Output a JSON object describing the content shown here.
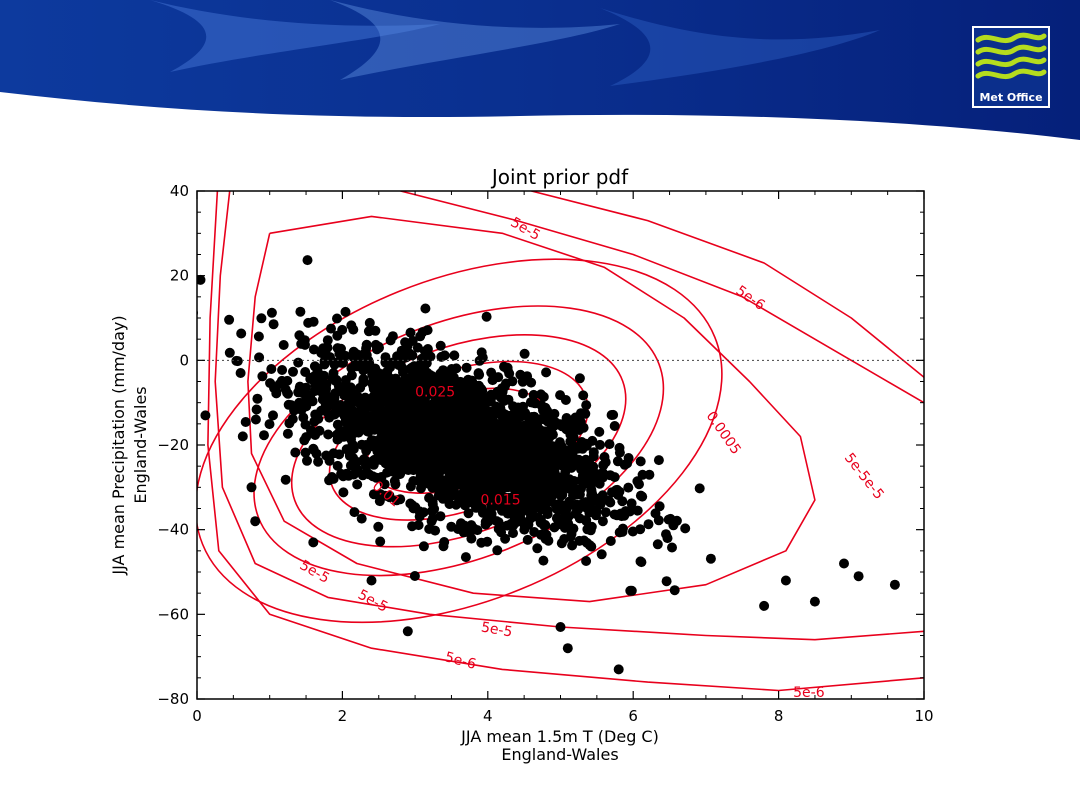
{
  "header": {
    "logo_text": "Met Office"
  },
  "colors": {
    "banner_dark": "#0b2f8c",
    "banner_light": "#e9f2fb",
    "contour": "#e8001c",
    "points": "#000000",
    "logo_green": "#b5dc1e"
  },
  "chart_data": {
    "type": "scatter",
    "title": "Joint prior pdf",
    "xlabel": "JJA mean 1.5m T (Deg C)",
    "xlabel2": "England-Wales",
    "ylabel": "JJA mean Precipitation (mm/day)",
    "ylabel2": "England-Wales",
    "xlim": [
      0,
      10
    ],
    "ylim": [
      -80,
      40
    ],
    "xticks": [
      0,
      2,
      4,
      6,
      8,
      10
    ],
    "yticks": [
      40,
      20,
      0,
      -20,
      -40,
      -60,
      -80
    ],
    "reference_line": {
      "y": 0,
      "style": "dotted"
    },
    "scatter": {
      "center": [
        3.6,
        -19
      ],
      "count": 2500,
      "outliers": [
        [
          0.6,
          -3
        ],
        [
          0.75,
          -30
        ],
        [
          0.8,
          -38
        ],
        [
          1.6,
          -43
        ],
        [
          2.4,
          -52
        ],
        [
          2.9,
          -64
        ],
        [
          5.0,
          -63
        ],
        [
          5.8,
          -73
        ],
        [
          5.1,
          -68
        ],
        [
          7.8,
          -58
        ],
        [
          8.1,
          -52
        ],
        [
          8.5,
          -57
        ],
        [
          9.1,
          -51
        ],
        [
          9.6,
          -53
        ],
        [
          8.9,
          -48
        ]
      ]
    },
    "contours": [
      {
        "level": "0.025",
        "labeled": true
      },
      {
        "level": "0.015",
        "labeled": true
      },
      {
        "level": "0.01",
        "labeled": true
      },
      {
        "level": "0.0005",
        "labeled": true
      },
      {
        "level": "5e-5",
        "labeled": true
      },
      {
        "level": "5e-6",
        "labeled": true
      }
    ],
    "contour_labels": [
      {
        "text": "0.025",
        "x": 3.0,
        "y": -8.5,
        "angle": 0
      },
      {
        "text": "0.015",
        "x": 3.9,
        "y": -34,
        "angle": 0
      },
      {
        "text": "0.01",
        "x": 2.4,
        "y": -30,
        "angle": 40
      },
      {
        "text": "0.0005",
        "x": 7.0,
        "y": -13,
        "angle": 55
      },
      {
        "text": "5e-5",
        "x": 4.3,
        "y": 32,
        "angle": 30
      },
      {
        "text": "5e-6",
        "x": 7.4,
        "y": 16,
        "angle": 35
      },
      {
        "text": "5e-5e-5",
        "x": 8.9,
        "y": -23,
        "angle": 52
      },
      {
        "text": "5e-5",
        "x": 1.4,
        "y": -49,
        "angle": 30
      },
      {
        "text": "5e-5",
        "x": 2.2,
        "y": -56,
        "angle": 28
      },
      {
        "text": "5e-5",
        "x": 3.9,
        "y": -64,
        "angle": 10
      },
      {
        "text": "5e-6",
        "x": 3.4,
        "y": -71,
        "angle": 15
      },
      {
        "text": "5e-6",
        "x": 8.2,
        "y": -79.5,
        "angle": 0
      }
    ]
  }
}
